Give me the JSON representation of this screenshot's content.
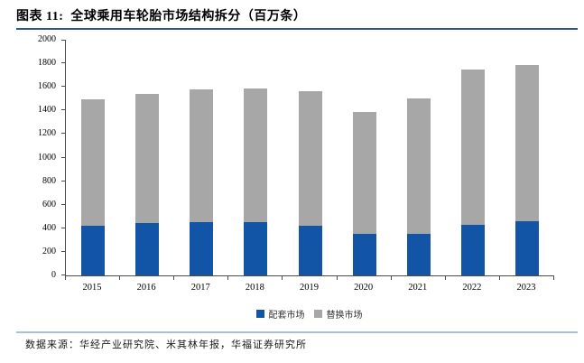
{
  "header": {
    "title": "图表 11:  全球乘用车轮胎市场结构拆分（百万条）"
  },
  "footer": {
    "source": "数据来源：华经产业研究院、米其林年报，华福证券研究所"
  },
  "colors": {
    "oe_blue": "#1254a6",
    "replacement_gray": "#a7a7a7",
    "title_rule": "#2f5496",
    "footer_rule": "#a9bfdc",
    "axis": "#4d4d4d"
  },
  "chart_data": {
    "type": "bar",
    "stacked": true,
    "title": "全球乘用车轮胎市场结构拆分（百万条）",
    "categories": [
      "2015",
      "2016",
      "2017",
      "2018",
      "2019",
      "2020",
      "2021",
      "2022",
      "2023"
    ],
    "series": [
      {
        "name": "配套市场",
        "color": "#1254a6",
        "values": [
          425,
          445,
          455,
          450,
          425,
          350,
          355,
          430,
          460
        ]
      },
      {
        "name": "替换市场",
        "color": "#a7a7a7",
        "values": [
          1070,
          1095,
          1125,
          1140,
          1135,
          1040,
          1150,
          1320,
          1325
        ]
      }
    ],
    "totals": [
      1495,
      1540,
      1580,
      1590,
      1560,
      1390,
      1505,
      1750,
      1785
    ],
    "xlabel": "",
    "ylabel": "",
    "ylim": [
      0,
      2000
    ],
    "ytick_step": 200,
    "grid": false,
    "legend_position": "bottom"
  }
}
